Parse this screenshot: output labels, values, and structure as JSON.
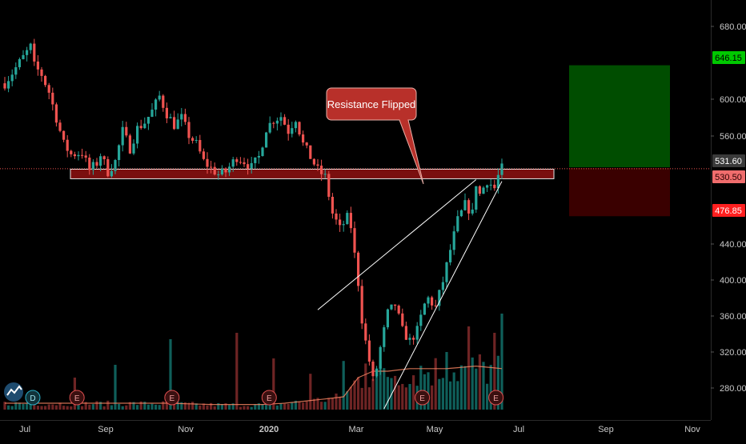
{
  "colors": {
    "background": "#000000",
    "bull": "#26a69a",
    "bear": "#ef5350",
    "target_zone": "#004d00",
    "stop_zone": "#3a0000",
    "resistance_band": "#7a0f0f",
    "callout": "#b8302a",
    "axis_text": "#c8c8c8",
    "volume_ma": "#ff8a65"
  },
  "annotation": {
    "callout_text": "Resistance Flipped"
  },
  "markers": [
    {
      "letter": "D",
      "t": 7.6
    },
    {
      "letter": "E",
      "t": 19.6
    },
    {
      "letter": "E",
      "t": 45.4
    },
    {
      "letter": "E",
      "t": 71.8
    },
    {
      "letter": "E",
      "t": 113.4
    },
    {
      "letter": "E",
      "t": 133.4
    }
  ],
  "chart_data": {
    "type": "candlestick",
    "title": "",
    "xlabel": "",
    "ylabel": "",
    "x_ticks": [
      "Jul",
      "Sep",
      "Nov",
      "2020",
      "Mar",
      "May",
      "Jul",
      "Sep",
      "Nov"
    ],
    "y_ticks": [
      "680.00",
      "600.00",
      "560.00",
      "440.00",
      "400.00",
      "360.00",
      "320.00",
      "280.00"
    ],
    "ylim": [
      254,
      702
    ],
    "price_labels": [
      {
        "value": 646.15,
        "text": "646.15",
        "role": "target"
      },
      {
        "value": 531.6,
        "text": "531.60",
        "role": "last"
      },
      {
        "value": 530.5,
        "text": "530.50",
        "role": "entry"
      },
      {
        "value": 476.85,
        "text": "476.85",
        "role": "stop"
      }
    ],
    "resistance_zone": [
      520,
      531
    ],
    "trend_channel": {
      "lower": [
        [
          103,
          255
        ],
        [
          135,
          517
        ]
      ],
      "upper": [
        [
          85,
          369
        ],
        [
          128,
          519
        ]
      ]
    },
    "price_path": [
      [
        0,
        630
      ],
      [
        3,
        648
      ],
      [
        7,
        672
      ],
      [
        8,
        650
      ],
      [
        10,
        640
      ],
      [
        12,
        620
      ],
      [
        14,
        590
      ],
      [
        16,
        560
      ],
      [
        18,
        548
      ],
      [
        21,
        550
      ],
      [
        23,
        530
      ],
      [
        25,
        538
      ],
      [
        26,
        548
      ],
      [
        28,
        528
      ],
      [
        30,
        540
      ],
      [
        32,
        575
      ],
      [
        34,
        555
      ],
      [
        36,
        578
      ],
      [
        38,
        585
      ],
      [
        40,
        598
      ],
      [
        42,
        615
      ],
      [
        44,
        595
      ],
      [
        46,
        582
      ],
      [
        48,
        590
      ],
      [
        50,
        570
      ],
      [
        52,
        560
      ],
      [
        54,
        540
      ],
      [
        56,
        532
      ],
      [
        58,
        525
      ],
      [
        60,
        528
      ],
      [
        63,
        545
      ],
      [
        65,
        540
      ],
      [
        67,
        533
      ],
      [
        69,
        545
      ],
      [
        71,
        578
      ],
      [
        73,
        588
      ],
      [
        75,
        592
      ],
      [
        77,
        575
      ],
      [
        79,
        590
      ],
      [
        81,
        560
      ],
      [
        83,
        545
      ],
      [
        85,
        530
      ],
      [
        87,
        522
      ],
      [
        89,
        480
      ],
      [
        91,
        462
      ],
      [
        93,
        475
      ],
      [
        94,
        465
      ],
      [
        95,
        432
      ],
      [
        96,
        400
      ],
      [
        97,
        358
      ],
      [
        98,
        332
      ],
      [
        99,
        310
      ],
      [
        100,
        288
      ],
      [
        101,
        302
      ],
      [
        102,
        325
      ],
      [
        104,
        365
      ],
      [
        106,
        375
      ],
      [
        108,
        345
      ],
      [
        110,
        333
      ],
      [
        112,
        345
      ],
      [
        114,
        375
      ],
      [
        115,
        382
      ],
      [
        117,
        372
      ],
      [
        119,
        402
      ],
      [
        121,
        438
      ],
      [
        123,
        472
      ],
      [
        125,
        490
      ],
      [
        127,
        480
      ],
      [
        128,
        515
      ],
      [
        129,
        502
      ],
      [
        131,
        518
      ],
      [
        133,
        509
      ],
      [
        134,
        523
      ],
      [
        135,
        532
      ]
    ],
    "volume_path": [
      [
        0,
        0.05
      ],
      [
        15,
        0.05
      ],
      [
        30,
        0.05
      ],
      [
        44,
        0.05
      ],
      [
        56,
        0.04
      ],
      [
        70,
        0.04
      ],
      [
        76,
        0.05
      ],
      [
        86,
        0.08
      ],
      [
        92,
        0.1
      ],
      [
        96,
        0.25
      ],
      [
        100,
        0.3
      ],
      [
        104,
        0.3
      ],
      [
        110,
        0.32
      ],
      [
        120,
        0.32
      ],
      [
        128,
        0.34
      ],
      [
        135,
        0.32
      ]
    ],
    "volume_spikes": [
      [
        19,
        0.25
      ],
      [
        30,
        0.35
      ],
      [
        45,
        0.55
      ],
      [
        63,
        0.6
      ],
      [
        73,
        0.4
      ],
      [
        83,
        0.28
      ],
      [
        92,
        0.38
      ],
      [
        98,
        0.36
      ],
      [
        110,
        0.2
      ],
      [
        120,
        0.45
      ],
      [
        126,
        0.65
      ],
      [
        133,
        0.6
      ],
      [
        135,
        0.75
      ]
    ],
    "volume_ma_path": [
      [
        0,
        0.05
      ],
      [
        15,
        0.05
      ],
      [
        30,
        0.05
      ],
      [
        44,
        0.05
      ],
      [
        56,
        0.04
      ],
      [
        70,
        0.04
      ],
      [
        76,
        0.05
      ],
      [
        86,
        0.08
      ],
      [
        92,
        0.1
      ],
      [
        96,
        0.25
      ],
      [
        100,
        0.3
      ],
      [
        104,
        0.3
      ],
      [
        110,
        0.32
      ],
      [
        120,
        0.32
      ],
      [
        128,
        0.34
      ],
      [
        135,
        0.32
      ]
    ]
  }
}
